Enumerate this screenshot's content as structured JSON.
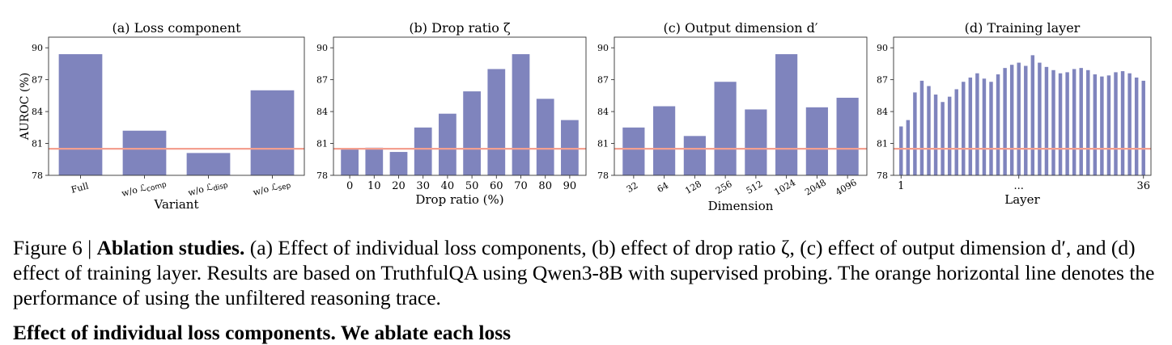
{
  "chart_data": [
    {
      "type": "bar",
      "title": "(a) Loss component",
      "xlabel": "Variant",
      "ylabel": "AUROC (%)",
      "categories": [
        "Full",
        "w/o ℒcomp",
        "w/o ℒdisp",
        "w/o ℒsep"
      ],
      "category_labels": [
        {
          "main": "Full",
          "sub": ""
        },
        {
          "main": "w/o ℒ",
          "sub": "comp"
        },
        {
          "main": "w/o ℒ",
          "sub": "disp"
        },
        {
          "main": "w/o ℒ",
          "sub": "sep"
        }
      ],
      "values": [
        89.4,
        82.2,
        80.1,
        86.0
      ],
      "baseline": 80.5,
      "ylim": [
        78,
        91
      ],
      "yticks": [
        78,
        81,
        84,
        87,
        90
      ],
      "tick_rotation": -15
    },
    {
      "type": "bar",
      "title": "(b) Drop ratio ζ",
      "xlabel": "Drop ratio (%)",
      "ylabel": "",
      "categories": [
        "0",
        "10",
        "20",
        "30",
        "40",
        "50",
        "60",
        "70",
        "80",
        "90"
      ],
      "values": [
        80.5,
        80.6,
        80.2,
        82.5,
        83.8,
        85.9,
        88.0,
        89.4,
        85.2,
        83.2
      ],
      "baseline": 80.5,
      "ylim": [
        78,
        91
      ],
      "yticks": [
        78,
        81,
        84,
        87,
        90
      ],
      "tick_rotation": 0
    },
    {
      "type": "bar",
      "title": "(c) Output dimension d′",
      "xlabel": "Dimension",
      "ylabel": "",
      "categories": [
        "32",
        "64",
        "128",
        "256",
        "512",
        "1024",
        "2048",
        "4096"
      ],
      "values": [
        82.5,
        84.5,
        81.7,
        86.8,
        84.2,
        89.4,
        84.4,
        85.3
      ],
      "baseline": 80.5,
      "ylim": [
        78,
        91
      ],
      "yticks": [
        78,
        81,
        84,
        87,
        90
      ],
      "tick_rotation": -30
    },
    {
      "type": "bar",
      "title": "(d) Training layer",
      "xlabel": "Layer",
      "ylabel": "",
      "categories": [
        "1",
        "2",
        "3",
        "4",
        "5",
        "6",
        "7",
        "8",
        "9",
        "10",
        "11",
        "12",
        "13",
        "14",
        "15",
        "16",
        "17",
        "18",
        "19",
        "20",
        "21",
        "22",
        "23",
        "24",
        "25",
        "26",
        "27",
        "28",
        "29",
        "30",
        "31",
        "32",
        "33",
        "34",
        "35",
        "36"
      ],
      "tick_labels": [
        "1",
        "...",
        "36"
      ],
      "values": [
        82.6,
        83.2,
        85.8,
        86.9,
        86.4,
        85.6,
        84.9,
        85.4,
        86.1,
        86.8,
        87.2,
        87.6,
        87.1,
        86.8,
        87.5,
        88.1,
        88.4,
        88.6,
        88.3,
        89.3,
        88.6,
        88.2,
        87.9,
        87.6,
        87.7,
        88.0,
        88.1,
        87.9,
        87.5,
        87.3,
        87.4,
        87.7,
        87.8,
        87.6,
        87.2,
        86.9
      ],
      "baseline": 80.5,
      "ylim": [
        78,
        91
      ],
      "yticks": [
        78,
        81,
        84,
        87,
        90
      ],
      "tick_rotation": 0
    }
  ],
  "colors": {
    "bar": "#7f84bd",
    "baseline": "#f4a090",
    "axis": "#333333"
  },
  "caption": {
    "prefix": "Figure 6 | ",
    "bold": "Ablation studies.",
    "text": " (a) Effect of individual loss components, (b) effect of drop ratio ζ, (c) effect of output dimension d′, and (d) effect of training layer. Results are based on TruthfulQA using Qwen3-8B with supervised probing. The orange horizontal line denotes the performance of using the unfiltered reasoning trace."
  },
  "next_heading": "Effect of individual loss components. We ablate each loss"
}
